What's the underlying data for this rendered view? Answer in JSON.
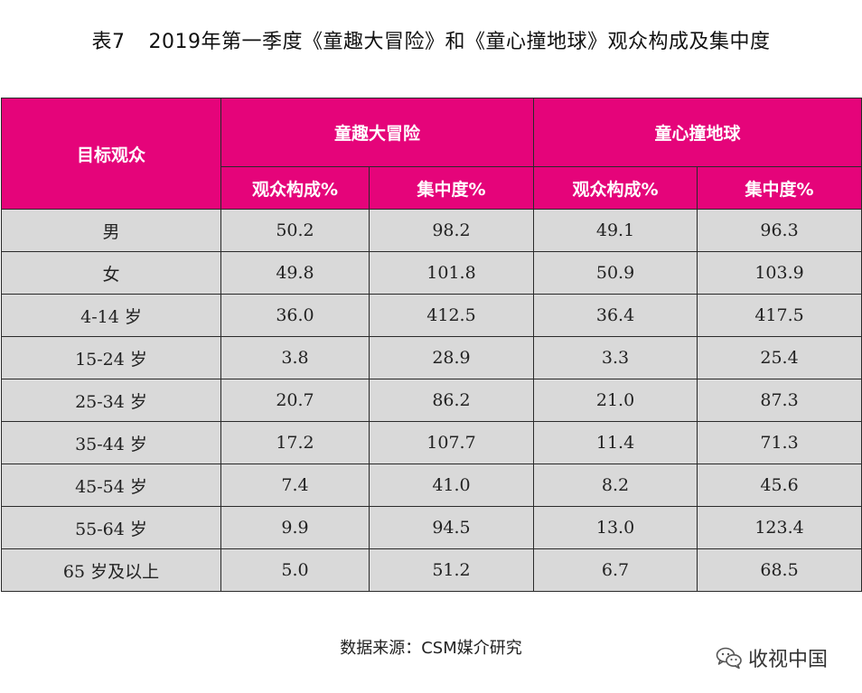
{
  "title": {
    "label": "表7",
    "text": "2019年第一季度《童趣大冒险》和《童心撞地球》观众构成及集中度"
  },
  "table": {
    "row_header": "目标观众",
    "groups": [
      {
        "name": "童趣大冒险",
        "columns": [
          "观众构成%",
          "集中度%"
        ]
      },
      {
        "name": "童心撞地球",
        "columns": [
          "观众构成%",
          "集中度%"
        ]
      }
    ],
    "rows": [
      {
        "label": "男",
        "values": [
          "50.2",
          "98.2",
          "49.1",
          "96.3"
        ]
      },
      {
        "label": "女",
        "values": [
          "49.8",
          "101.8",
          "50.9",
          "103.9"
        ]
      },
      {
        "label": "4-14 岁",
        "values": [
          "36.0",
          "412.5",
          "36.4",
          "417.5"
        ]
      },
      {
        "label": "15-24 岁",
        "values": [
          "3.8",
          "28.9",
          "3.3",
          "25.4"
        ]
      },
      {
        "label": "25-34 岁",
        "values": [
          "20.7",
          "86.2",
          "21.0",
          "87.3"
        ]
      },
      {
        "label": "35-44 岁",
        "values": [
          "17.2",
          "107.7",
          "11.4",
          "71.3"
        ]
      },
      {
        "label": "45-54 岁",
        "values": [
          "7.4",
          "41.0",
          "8.2",
          "45.6"
        ]
      },
      {
        "label": "55-64 岁",
        "values": [
          "9.9",
          "94.5",
          "13.0",
          "123.4"
        ]
      },
      {
        "label": "65 岁及以上",
        "values": [
          "5.0",
          "51.2",
          "6.7",
          "68.5"
        ]
      }
    ]
  },
  "source": "数据来源：CSM媒介研究",
  "watermark": {
    "text": "收视中国",
    "icon": "wechat-icon"
  },
  "colors": {
    "header_bg": "#e5047a",
    "cell_bg": "#d9d9d9"
  }
}
